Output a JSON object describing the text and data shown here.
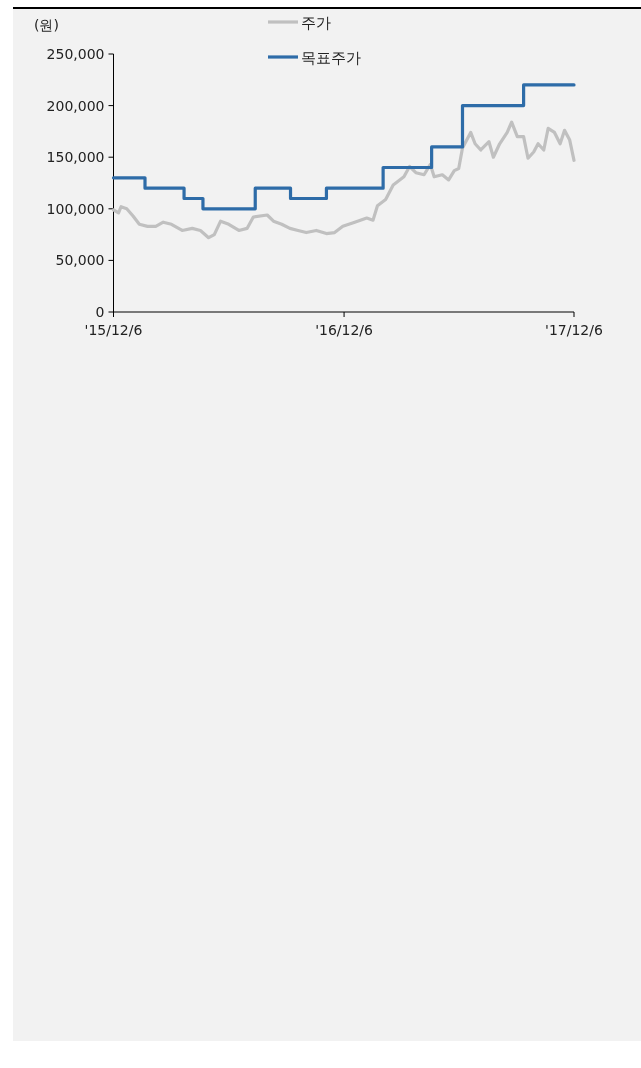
{
  "chart_data": {
    "type": "line",
    "ylabel": "(원)",
    "legend": "top",
    "grid": false,
    "xlim": [
      "2015-12-06",
      "2017-12-06"
    ],
    "xticks": [
      {
        "value": "2015-12-06",
        "label": "'15/12/6"
      },
      {
        "value": "2016-12-06",
        "label": "'16/12/6"
      },
      {
        "value": "2017-12-06",
        "label": "'17/12/6"
      }
    ],
    "ylim": [
      0,
      250000
    ],
    "yticks": [
      {
        "value": 0,
        "label": "0"
      },
      {
        "value": 50000,
        "label": "50,000"
      },
      {
        "value": 100000,
        "label": "100,000"
      },
      {
        "value": 150000,
        "label": "150,000"
      },
      {
        "value": 200000,
        "label": "200,000"
      },
      {
        "value": 250000,
        "label": "250,000"
      }
    ],
    "series": [
      {
        "name": "주가",
        "color": "#c0c0c0",
        "x": [
          "2015-12-06",
          "2015-12-14",
          "2015-12-18",
          "2015-12-27",
          "2016-01-06",
          "2016-01-16",
          "2016-01-29",
          "2016-02-11",
          "2016-02-23",
          "2016-03-07",
          "2016-03-24",
          "2016-04-09",
          "2016-04-22",
          "2016-05-05",
          "2016-05-14",
          "2016-05-24",
          "2016-06-06",
          "2016-06-22",
          "2016-07-05",
          "2016-07-15",
          "2016-08-06",
          "2016-08-16",
          "2016-08-29",
          "2016-09-11",
          "2016-09-24",
          "2016-10-07",
          "2016-10-23",
          "2016-11-08",
          "2016-11-21",
          "2016-12-04",
          "2016-12-23",
          "2017-01-11",
          "2017-01-21",
          "2017-01-28",
          "2017-02-10",
          "2017-02-22",
          "2017-03-11",
          "2017-03-20",
          "2017-03-30",
          "2017-04-12",
          "2017-04-22",
          "2017-04-28",
          "2017-05-11",
          "2017-05-21",
          "2017-05-30",
          "2017-06-06",
          "2017-06-12",
          "2017-06-25",
          "2017-07-02",
          "2017-07-11",
          "2017-07-24",
          "2017-07-31",
          "2017-08-10",
          "2017-08-22",
          "2017-08-29",
          "2017-09-07",
          "2017-09-17",
          "2017-09-24",
          "2017-10-03",
          "2017-10-10",
          "2017-10-19",
          "2017-10-26",
          "2017-11-05",
          "2017-11-14",
          "2017-11-21",
          "2017-11-29",
          "2017-12-06"
        ],
        "values": [
          99000,
          96000,
          102000,
          100000,
          93000,
          85000,
          83000,
          83000,
          87000,
          85000,
          79000,
          81000,
          79000,
          72000,
          75000,
          88000,
          85000,
          79000,
          81000,
          92000,
          94000,
          88000,
          85000,
          81000,
          79000,
          77000,
          79000,
          76000,
          77000,
          83000,
          87000,
          91000,
          89000,
          103000,
          109000,
          123000,
          131000,
          141000,
          135000,
          133000,
          143000,
          131000,
          133000,
          128000,
          137000,
          139000,
          159000,
          174000,
          163000,
          157000,
          165000,
          150000,
          163000,
          174000,
          184000,
          170000,
          170000,
          149000,
          155000,
          163000,
          157000,
          178000,
          174000,
          163000,
          176000,
          167000,
          147000
        ]
      },
      {
        "name": "목표주가",
        "color": "#2e6ca8",
        "type": "step",
        "x": [
          "2015-12-06",
          "2016-01-25",
          "2016-03-27",
          "2016-04-26",
          "2016-07-18",
          "2016-09-12",
          "2016-11-08",
          "2017-02-06",
          "2017-04-24",
          "2017-06-12",
          "2017-09-17",
          "2017-12-06"
        ],
        "values": [
          130000,
          120000,
          110000,
          100000,
          120000,
          110000,
          120000,
          140000,
          160000,
          200000,
          220000,
          220000
        ]
      }
    ]
  }
}
